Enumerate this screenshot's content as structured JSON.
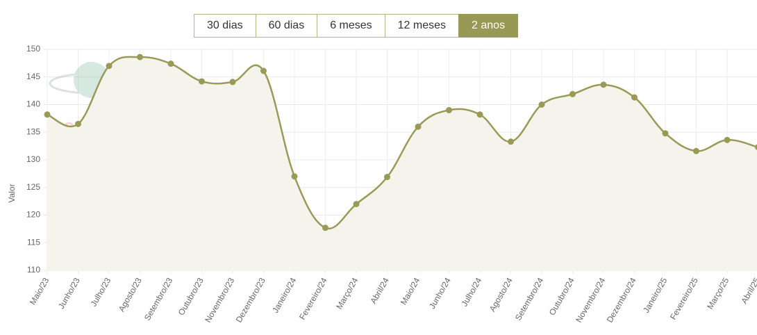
{
  "range_buttons": [
    {
      "label": "30 dias",
      "active": false
    },
    {
      "label": "60 dias",
      "active": false
    },
    {
      "label": "6 meses",
      "active": false
    },
    {
      "label": "12 meses",
      "active": false
    },
    {
      "label": "2 anos",
      "active": true
    }
  ],
  "watermark": "cepea",
  "chart_data": {
    "type": "line",
    "y_label": "Valor",
    "categories": [
      "Maio/23",
      "Junho/23",
      "Julho/23",
      "Agosto/23",
      "Setembro/23",
      "Outubro/23",
      "Novembro/23",
      "Dezembro/23",
      "Janeiro/24",
      "Fevereiro/24",
      "Março/24",
      "Abril/24",
      "Maio/24",
      "Junho/24",
      "Julho/24",
      "Agosto/24",
      "Setembro/24",
      "Outubro/24",
      "Novembro/24",
      "Dezembro/24",
      "Janeiro/25",
      "Fevereiro/25",
      "Março/25",
      "Abril/25"
    ],
    "values": [
      138.2,
      136.5,
      147,
      148.6,
      147.4,
      144.2,
      144.1,
      146.1,
      127,
      117.7,
      122,
      126.9,
      136,
      139,
      138.2,
      133.3,
      140,
      141.9,
      143.6,
      141.3,
      134.8,
      131.6,
      133.6,
      132.3
    ],
    "color": "#9a9a56",
    "fill": "#f4f4ec",
    "ylim": [
      110,
      150
    ],
    "yticks": [
      110,
      115,
      120,
      125,
      130,
      135,
      140,
      145,
      150
    ],
    "grid": true
  }
}
